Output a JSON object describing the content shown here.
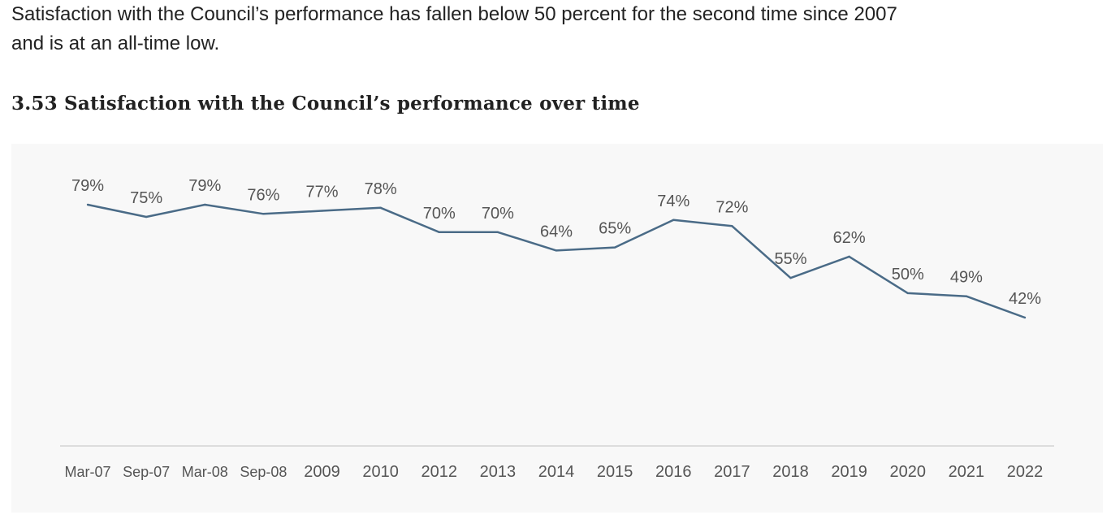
{
  "intro_text": "Satisfaction with the Council’s performance has fallen below 50 percent for the second time since 2007 and is at an all-time low.",
  "figure_title": "3.53 Satisfaction with the Council’s performance over time",
  "colors": {
    "line": "#4a6b87",
    "panel_background": "#f8f8f8",
    "axis": "#dddddd",
    "label_text": "#555555"
  },
  "chart_data": {
    "type": "line",
    "title": "3.53 Satisfaction with the Council’s performance over time",
    "xlabel": "",
    "ylabel": "",
    "categories": [
      "Mar-07",
      "Sep-07",
      "Mar-08",
      "Sep-08",
      "2009",
      "2010",
      "2012",
      "2013",
      "2014",
      "2015",
      "2016",
      "2017",
      "2018",
      "2019",
      "2020",
      "2021",
      "2022"
    ],
    "series": [
      {
        "values": [
          79,
          75,
          79,
          76,
          77,
          78,
          70,
          70,
          64,
          65,
          74,
          72,
          55,
          62,
          50,
          49,
          42
        ],
        "labels": [
          "79%",
          "75%",
          "79%",
          "76%",
          "77%",
          "78%",
          "70%",
          "70%",
          "64%",
          "65%",
          "74%",
          "72%",
          "55%",
          "62%",
          "50%",
          "49%",
          "42%"
        ]
      }
    ],
    "ylim": [
      0,
      100
    ],
    "grid": false,
    "legend": "none"
  }
}
